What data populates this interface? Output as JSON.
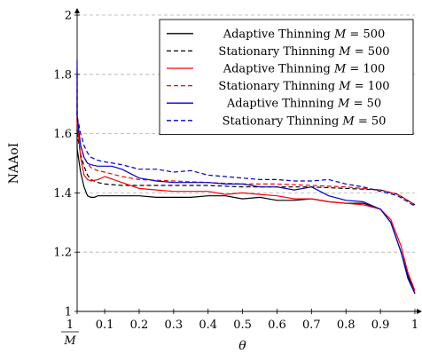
{
  "chart_data": {
    "type": "line",
    "xlabel": "θ",
    "ylabel": "NAAoI",
    "xlim": [
      0.02,
      1.0
    ],
    "ylim": [
      1.0,
      2.0
    ],
    "grid": "horizontal dashed",
    "legend_position": "top-right",
    "x_ticks": [
      {
        "value": 0.02,
        "label": "1/M"
      },
      {
        "value": 0.1,
        "label": "0.1"
      },
      {
        "value": 0.2,
        "label": "0.2"
      },
      {
        "value": 0.3,
        "label": "0.3"
      },
      {
        "value": 0.4,
        "label": "0.4"
      },
      {
        "value": 0.5,
        "label": "0.5"
      },
      {
        "value": 0.6,
        "label": "0.6"
      },
      {
        "value": 0.7,
        "label": "0.7"
      },
      {
        "value": 0.8,
        "label": "0.8"
      },
      {
        "value": 0.9,
        "label": "0.9"
      },
      {
        "value": 1.0,
        "label": "1"
      }
    ],
    "y_ticks": [
      {
        "value": 1.0,
        "label": "1"
      },
      {
        "value": 1.2,
        "label": "1.2"
      },
      {
        "value": 1.4,
        "label": "1.4"
      },
      {
        "value": 1.6,
        "label": "1.6"
      },
      {
        "value": 1.8,
        "label": "1.8"
      },
      {
        "value": 2.0,
        "label": "2"
      }
    ],
    "series": [
      {
        "name": "Adaptive Thinning M = 500",
        "legend_main": "Adaptive Thinning ",
        "legend_var": "M",
        "legend_value": " = 500",
        "color": "#000000",
        "dash": "solid",
        "x": [
          0.002,
          0.01,
          0.02,
          0.03,
          0.04,
          0.05,
          0.06,
          0.07,
          0.08,
          0.1,
          0.15,
          0.2,
          0.25,
          0.3,
          0.35,
          0.4,
          0.45,
          0.5,
          0.55,
          0.6,
          0.65,
          0.7,
          0.75,
          0.8,
          0.85,
          0.9,
          0.93,
          0.96,
          0.98,
          1.0
        ],
        "y": [
          1.67,
          1.63,
          1.55,
          1.47,
          1.42,
          1.39,
          1.385,
          1.385,
          1.39,
          1.39,
          1.39,
          1.39,
          1.385,
          1.385,
          1.385,
          1.39,
          1.39,
          1.38,
          1.385,
          1.375,
          1.375,
          1.38,
          1.37,
          1.365,
          1.365,
          1.345,
          1.3,
          1.2,
          1.12,
          1.06
        ]
      },
      {
        "name": "Stationary Thinning M = 500",
        "legend_main": "Stationary Thinning ",
        "legend_var": "M",
        "legend_value": " = 500",
        "color": "#000000",
        "dash": "dashed",
        "x": [
          0.002,
          0.01,
          0.02,
          0.03,
          0.04,
          0.05,
          0.06,
          0.08,
          0.1,
          0.15,
          0.2,
          0.3,
          0.4,
          0.5,
          0.6,
          0.7,
          0.8,
          0.9,
          0.95,
          1.0
        ],
        "y": [
          1.7,
          1.66,
          1.6,
          1.53,
          1.49,
          1.46,
          1.445,
          1.435,
          1.43,
          1.425,
          1.425,
          1.425,
          1.425,
          1.42,
          1.42,
          1.42,
          1.415,
          1.41,
          1.395,
          1.36
        ]
      },
      {
        "name": "Adaptive Thinning M = 100",
        "legend_main": "Adaptive Thinning ",
        "legend_var": "M",
        "legend_value": " = 100",
        "color": "#ff0000",
        "dash": "solid",
        "x": [
          0.002,
          0.01,
          0.02,
          0.03,
          0.04,
          0.05,
          0.06,
          0.08,
          0.1,
          0.15,
          0.2,
          0.25,
          0.3,
          0.35,
          0.4,
          0.45,
          0.5,
          0.55,
          0.6,
          0.65,
          0.7,
          0.75,
          0.8,
          0.85,
          0.9,
          0.93,
          0.96,
          0.98,
          1.0
        ],
        "y": [
          1.82,
          1.76,
          1.64,
          1.52,
          1.46,
          1.445,
          1.44,
          1.445,
          1.455,
          1.435,
          1.415,
          1.41,
          1.405,
          1.405,
          1.405,
          1.395,
          1.4,
          1.395,
          1.39,
          1.38,
          1.38,
          1.37,
          1.365,
          1.36,
          1.345,
          1.31,
          1.22,
          1.13,
          1.07
        ]
      },
      {
        "name": "Stationary Thinning M = 100",
        "legend_main": "Stationary Thinning ",
        "legend_var": "M",
        "legend_value": " = 100",
        "color": "#ff0000",
        "dash": "dashed",
        "x": [
          0.002,
          0.01,
          0.02,
          0.03,
          0.04,
          0.05,
          0.06,
          0.08,
          0.1,
          0.15,
          0.2,
          0.3,
          0.4,
          0.5,
          0.6,
          0.7,
          0.8,
          0.9,
          0.95,
          1.0
        ],
        "y": [
          1.75,
          1.7,
          1.62,
          1.56,
          1.52,
          1.5,
          1.485,
          1.475,
          1.47,
          1.455,
          1.445,
          1.44,
          1.435,
          1.43,
          1.43,
          1.425,
          1.42,
          1.41,
          1.395,
          1.36
        ]
      },
      {
        "name": "Adaptive Thinning M = 50",
        "legend_main": "Adaptive Thinning ",
        "legend_var": "M",
        "legend_value": " = 50",
        "color": "#0000cc",
        "dash": "solid",
        "x": [
          0.002,
          0.01,
          0.02,
          0.03,
          0.04,
          0.05,
          0.06,
          0.08,
          0.1,
          0.12,
          0.15,
          0.2,
          0.25,
          0.3,
          0.35,
          0.4,
          0.45,
          0.5,
          0.55,
          0.6,
          0.65,
          0.7,
          0.75,
          0.8,
          0.85,
          0.9,
          0.93,
          0.96,
          0.98,
          1.0
        ],
        "y": [
          1.85,
          1.78,
          1.66,
          1.56,
          1.52,
          1.5,
          1.495,
          1.49,
          1.49,
          1.49,
          1.48,
          1.45,
          1.44,
          1.435,
          1.435,
          1.435,
          1.43,
          1.43,
          1.42,
          1.42,
          1.41,
          1.42,
          1.39,
          1.375,
          1.37,
          1.345,
          1.3,
          1.2,
          1.11,
          1.06
        ]
      },
      {
        "name": "Stationary Thinning M = 50",
        "legend_main": "Stationary Thinning ",
        "legend_var": "M",
        "legend_value": " = 50",
        "color": "#0000cc",
        "dash": "dashed",
        "x": [
          0.002,
          0.01,
          0.02,
          0.03,
          0.04,
          0.05,
          0.06,
          0.08,
          0.1,
          0.15,
          0.2,
          0.25,
          0.3,
          0.35,
          0.4,
          0.45,
          0.5,
          0.55,
          0.6,
          0.65,
          0.7,
          0.75,
          0.8,
          0.85,
          0.9,
          0.95,
          1.0
        ],
        "y": [
          1.8,
          1.74,
          1.66,
          1.6,
          1.56,
          1.535,
          1.52,
          1.51,
          1.505,
          1.495,
          1.48,
          1.48,
          1.47,
          1.475,
          1.46,
          1.455,
          1.45,
          1.445,
          1.445,
          1.44,
          1.44,
          1.445,
          1.43,
          1.42,
          1.405,
          1.39,
          1.355
        ]
      }
    ]
  }
}
